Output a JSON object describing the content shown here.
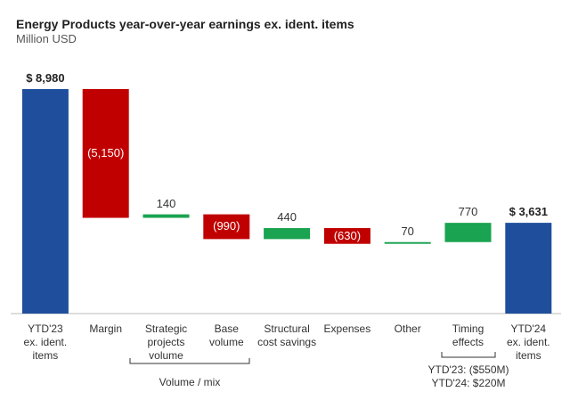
{
  "chart_data": {
    "type": "waterfall",
    "title": "Energy Products year-over-year earnings ex. ident. items",
    "subtitle": "Million USD",
    "categories": [
      "YTD'23\nex. ident.\nitems",
      "Margin",
      "Strategic\nprojects\nvolume",
      "Base\nvolume",
      "Structural\ncost savings",
      "Expenses",
      "Other",
      "Timing\neffects",
      "YTD'24\nex. ident.\nitems"
    ],
    "values": [
      8980,
      -5150,
      140,
      -990,
      440,
      -630,
      70,
      770,
      3631
    ],
    "value_labels": [
      "$ 8,980",
      "(5,150)",
      "140",
      "(990)",
      "440",
      "(630)",
      "70",
      "770",
      "$ 3,631"
    ],
    "measures": [
      "total",
      "relative",
      "relative",
      "relative",
      "relative",
      "relative",
      "relative",
      "relative",
      "total"
    ],
    "colors": {
      "total": "#1f4e9c",
      "increase": "#1aa350",
      "decrease": "#c00000"
    },
    "annotations": [
      "Volume / mix",
      "YTD'23: ($550M)",
      "YTD'24: $220M"
    ]
  }
}
